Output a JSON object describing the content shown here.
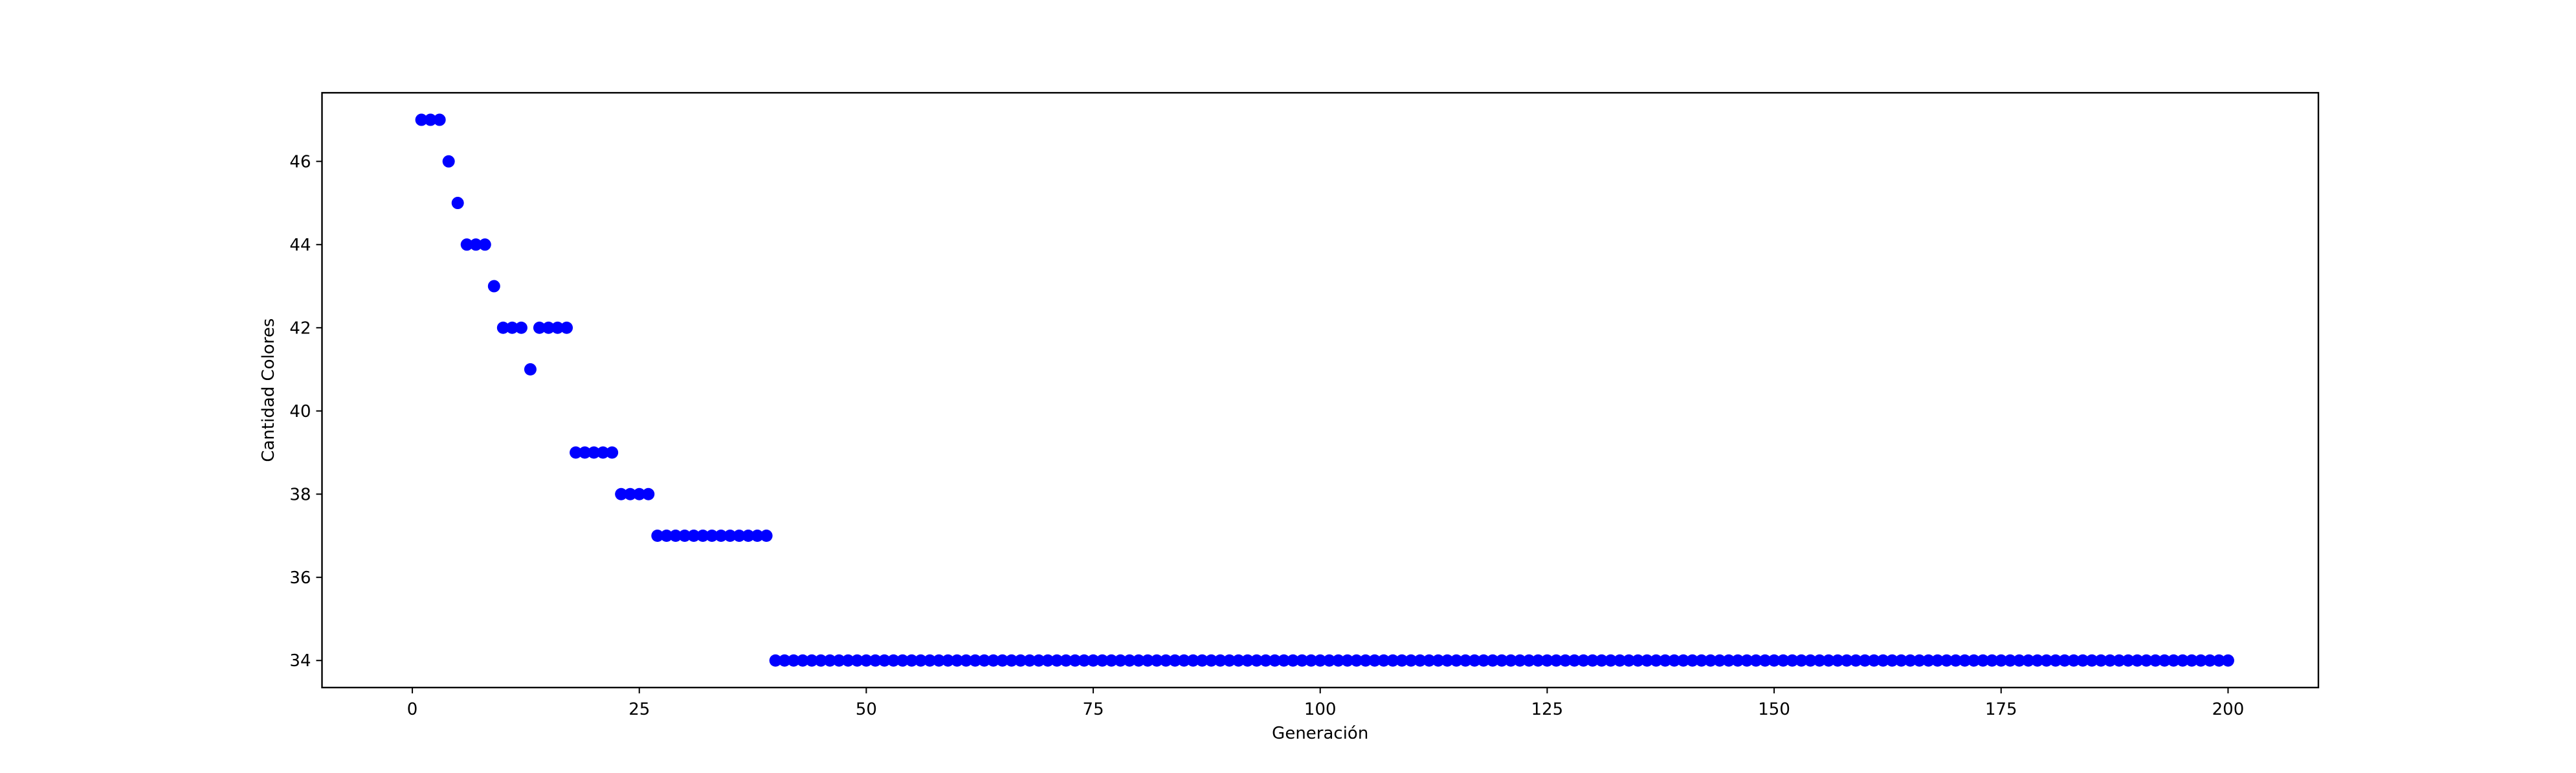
{
  "chart_data": {
    "type": "scatter",
    "title": "",
    "xlabel": "Generación",
    "ylabel": "Cantidad Colores",
    "xlim": [
      -9.95,
      209.95
    ],
    "ylim": [
      33.35,
      47.65
    ],
    "xticks": [
      0,
      25,
      50,
      75,
      100,
      125,
      150,
      175,
      200
    ],
    "xtick_labels": [
      "0",
      "25",
      "50",
      "75",
      "100",
      "125",
      "150",
      "175",
      "200"
    ],
    "yticks": [
      34,
      36,
      38,
      40,
      42,
      44,
      46
    ],
    "ytick_labels": [
      "34",
      "36",
      "38",
      "40",
      "42",
      "44",
      "46"
    ],
    "grid": false,
    "legend": "none",
    "marker_color": "#0000ff",
    "series": [
      {
        "x": [
          1,
          2,
          3,
          4,
          5,
          6,
          7,
          8,
          9,
          10,
          11,
          12,
          13,
          14,
          15,
          16,
          17,
          18,
          19,
          20,
          21,
          22,
          23,
          24,
          25,
          26,
          27,
          28,
          29,
          30,
          31,
          32,
          33,
          34,
          35,
          36,
          37,
          38,
          39,
          40,
          41,
          42,
          43,
          44,
          45,
          46,
          47,
          48,
          49,
          50,
          51,
          52,
          53,
          54,
          55,
          56,
          57,
          58,
          59,
          60,
          61,
          62,
          63,
          64,
          65,
          66,
          67,
          68,
          69,
          70,
          71,
          72,
          73,
          74,
          75,
          76,
          77,
          78,
          79,
          80,
          81,
          82,
          83,
          84,
          85,
          86,
          87,
          88,
          89,
          90,
          91,
          92,
          93,
          94,
          95,
          96,
          97,
          98,
          99,
          100,
          101,
          102,
          103,
          104,
          105,
          106,
          107,
          108,
          109,
          110,
          111,
          112,
          113,
          114,
          115,
          116,
          117,
          118,
          119,
          120,
          121,
          122,
          123,
          124,
          125,
          126,
          127,
          128,
          129,
          130,
          131,
          132,
          133,
          134,
          135,
          136,
          137,
          138,
          139,
          140,
          141,
          142,
          143,
          144,
          145,
          146,
          147,
          148,
          149,
          150,
          151,
          152,
          153,
          154,
          155,
          156,
          157,
          158,
          159,
          160,
          161,
          162,
          163,
          164,
          165,
          166,
          167,
          168,
          169,
          170,
          171,
          172,
          173,
          174,
          175,
          176,
          177,
          178,
          179,
          180,
          181,
          182,
          183,
          184,
          185,
          186,
          187,
          188,
          189,
          190,
          191,
          192,
          193,
          194,
          195,
          196,
          197,
          198,
          199,
          200
        ],
        "y": [
          47,
          47,
          47,
          46,
          45,
          44,
          44,
          44,
          43,
          42,
          42,
          42,
          41,
          42,
          42,
          42,
          42,
          39,
          39,
          39,
          39,
          39,
          38,
          38,
          38,
          38,
          37,
          37,
          37,
          37,
          37,
          37,
          37,
          37,
          37,
          37,
          37,
          37,
          37,
          34,
          34,
          34,
          34,
          34,
          34,
          34,
          34,
          34,
          34,
          34,
          34,
          34,
          34,
          34,
          34,
          34,
          34,
          34,
          34,
          34,
          34,
          34,
          34,
          34,
          34,
          34,
          34,
          34,
          34,
          34,
          34,
          34,
          34,
          34,
          34,
          34,
          34,
          34,
          34,
          34,
          34,
          34,
          34,
          34,
          34,
          34,
          34,
          34,
          34,
          34,
          34,
          34,
          34,
          34,
          34,
          34,
          34,
          34,
          34,
          34,
          34,
          34,
          34,
          34,
          34,
          34,
          34,
          34,
          34,
          34,
          34,
          34,
          34,
          34,
          34,
          34,
          34,
          34,
          34,
          34,
          34,
          34,
          34,
          34,
          34,
          34,
          34,
          34,
          34,
          34,
          34,
          34,
          34,
          34,
          34,
          34,
          34,
          34,
          34,
          34,
          34,
          34,
          34,
          34,
          34,
          34,
          34,
          34,
          34,
          34,
          34,
          34,
          34,
          34,
          34,
          34,
          34,
          34,
          34,
          34,
          34,
          34,
          34,
          34,
          34,
          34,
          34,
          34,
          34,
          34,
          34,
          34,
          34,
          34,
          34,
          34,
          34,
          34,
          34,
          34,
          34,
          34,
          34,
          34,
          34,
          34,
          34,
          34,
          34,
          34,
          34,
          34,
          34,
          34,
          34,
          34,
          34,
          34,
          34,
          34
        ]
      }
    ]
  }
}
